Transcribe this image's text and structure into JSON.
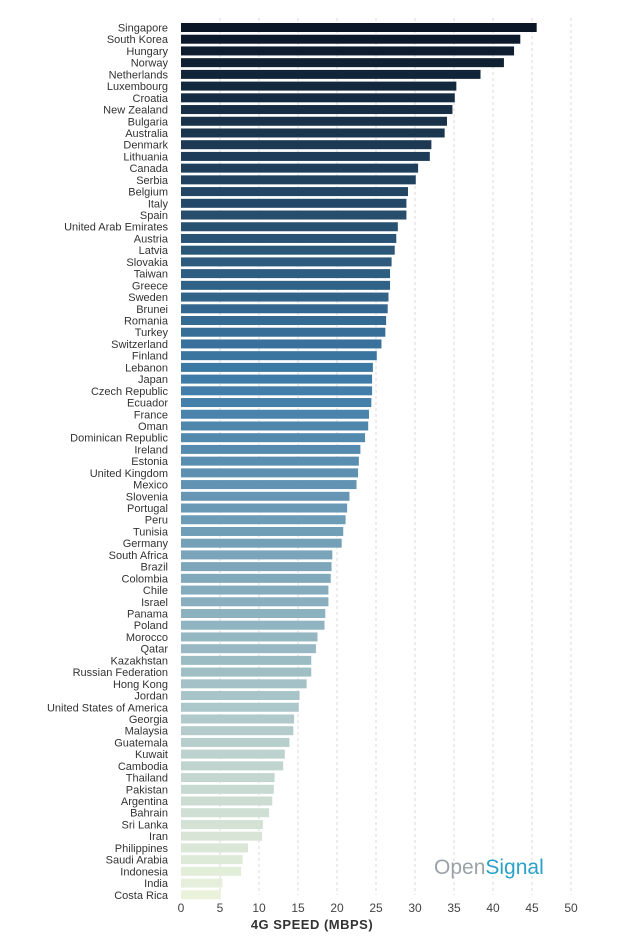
{
  "chart_data": {
    "type": "bar",
    "orientation": "horizontal",
    "title": "",
    "xlabel": "4G SPEED (MBPS)",
    "ylabel": "",
    "xlim": [
      0,
      50
    ],
    "xticks": [
      0,
      5,
      10,
      15,
      20,
      25,
      30,
      35,
      40,
      45,
      50
    ],
    "grid": true,
    "categories": [
      "Singapore",
      "South Korea",
      "Hungary",
      "Norway",
      "Netherlands",
      "Luxembourg",
      "Croatia",
      "New Zealand",
      "Bulgaria",
      "Australia",
      "Denmark",
      "Lithuania",
      "Canada",
      "Serbia",
      "Belgium",
      "Italy",
      "Spain",
      "United Arab Emirates",
      "Austria",
      "Latvia",
      "Slovakia",
      "Taiwan",
      "Greece",
      "Sweden",
      "Brunei",
      "Romania",
      "Turkey",
      "Switzerland",
      "Finland",
      "Lebanon",
      "Japan",
      "Czech Republic",
      "Ecuador",
      "France",
      "Oman",
      "Dominican Republic",
      "Ireland",
      "Estonia",
      "United Kingdom",
      "Mexico",
      "Slovenia",
      "Portugal",
      "Peru",
      "Tunisia",
      "Germany",
      "South Africa",
      "Brazil",
      "Colombia",
      "Chile",
      "Israel",
      "Panama",
      "Poland",
      "Morocco",
      "Qatar",
      "Kazakhstan",
      "Russian Federation",
      "Hong Kong",
      "Jordan",
      "United States of America",
      "Georgia",
      "Malaysia",
      "Guatemala",
      "Kuwait",
      "Cambodia",
      "Thailand",
      "Pakistan",
      "Argentina",
      "Bahrain",
      "Sri Lanka",
      "Iran",
      "Philippines",
      "Saudi Arabia",
      "Indonesia",
      "India",
      "Costa Rica"
    ],
    "values": [
      45.6,
      43.5,
      42.7,
      41.4,
      38.4,
      35.3,
      35.1,
      34.8,
      34.1,
      33.8,
      32.1,
      31.9,
      30.4,
      30.1,
      29.1,
      28.9,
      28.9,
      27.8,
      27.6,
      27.4,
      27.0,
      26.8,
      26.8,
      26.6,
      26.5,
      26.3,
      26.2,
      25.7,
      25.1,
      24.6,
      24.5,
      24.5,
      24.4,
      24.1,
      24.0,
      23.6,
      23.0,
      22.8,
      22.7,
      22.5,
      21.6,
      21.3,
      21.1,
      20.8,
      20.6,
      19.4,
      19.3,
      19.2,
      18.9,
      18.9,
      18.5,
      18.4,
      17.5,
      17.3,
      16.7,
      16.7,
      16.1,
      15.2,
      15.1,
      14.5,
      14.4,
      13.9,
      13.3,
      13.1,
      12.0,
      11.9,
      11.7,
      11.3,
      10.5,
      10.4,
      8.6,
      7.9,
      7.7,
      5.3,
      5.1
    ],
    "color_dark": "#0b1727",
    "color_mid": "#3d7aa7",
    "color_light": "#eaf2dc"
  },
  "watermark": {
    "part1": "Open",
    "part2": "Signal"
  }
}
